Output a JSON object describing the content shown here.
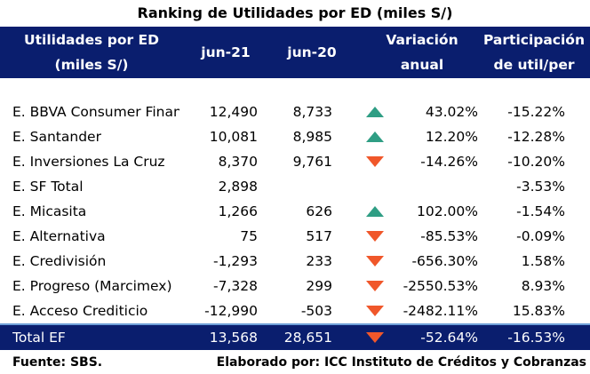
{
  "title": "Ranking de Utilidades por ED (miles S/)",
  "header": {
    "col1_line1": "Utilidades por ED",
    "col1_line2": "(miles S/)",
    "col2": "jun-21",
    "col3": "jun-20",
    "col4_line1": "Variación",
    "col4_line2": "anual",
    "col5_line1": "Participación",
    "col5_line2": "de util/per"
  },
  "colors": {
    "header_bg": "#0a1e6e",
    "up": "#2f9e84",
    "down": "#f0572a"
  },
  "rows": [
    {
      "name": "E. BBVA Consumer Finance",
      "jun21": "12,490",
      "jun20": "8,733",
      "trend": "up-triangle-icon",
      "var": "43.02%",
      "part": "-15.22%"
    },
    {
      "name": "E. Santander",
      "jun21": "10,081",
      "jun20": "8,985",
      "trend": "up-triangle-icon",
      "var": "12.20%",
      "part": "-12.28%"
    },
    {
      "name": "E. Inversiones La Cruz",
      "jun21": "8,370",
      "jun20": "9,761",
      "trend": "down-triangle-icon",
      "var": "-14.26%",
      "part": "-10.20%"
    },
    {
      "name": "E. SF Total",
      "jun21": "2,898",
      "jun20": "",
      "trend": "",
      "var": "",
      "part": "-3.53%"
    },
    {
      "name": "E. Micasita",
      "jun21": "1,266",
      "jun20": "626",
      "trend": "up-triangle-icon",
      "var": "102.00%",
      "part": "-1.54%"
    },
    {
      "name": "E. Alternativa",
      "jun21": "75",
      "jun20": "517",
      "trend": "down-triangle-icon",
      "var": "-85.53%",
      "part": "-0.09%"
    },
    {
      "name": "E. Credivisión",
      "jun21": "-1,293",
      "jun20": "233",
      "trend": "down-triangle-icon",
      "var": "-656.30%",
      "part": "1.58%"
    },
    {
      "name": "E. Progreso (Marcimex)",
      "jun21": "-7,328",
      "jun20": "299",
      "trend": "down-triangle-icon",
      "var": "-2550.53%",
      "part": "8.93%"
    },
    {
      "name": "E. Acceso Crediticio",
      "jun21": "-12,990",
      "jun20": "-503",
      "trend": "down-triangle-icon",
      "var": "-2482.11%",
      "part": "15.83%"
    }
  ],
  "total": {
    "name": "Total EF",
    "jun21": "13,568",
    "jun20": "28,651",
    "trend": "down-triangle-icon",
    "var": "-52.64%",
    "part": "-16.53%"
  },
  "footer": {
    "source": "Fuente: SBS.",
    "credit": "Elaborado por: ICC Instituto de Créditos y Cobranzas"
  }
}
